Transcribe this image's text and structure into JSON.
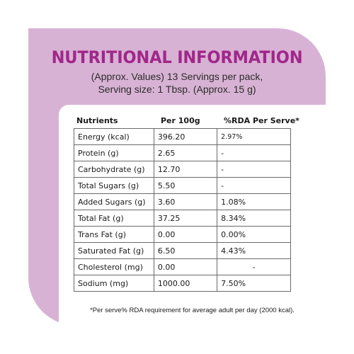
{
  "title": "NUTRITIONAL INFORMATION",
  "subtitle_line1": "(Approx. Values) 13 Servings per pack,",
  "subtitle_line2": "Serving size: 1 Tbsp. (Approx. 15 g)",
  "colors": {
    "accent": "#a0278a",
    "background": "#d8b2d4",
    "panel": "#ffffff"
  },
  "table": {
    "headers": [
      "Nutrients",
      "Per 100g",
      "%RDA Per Serve*"
    ],
    "rows": [
      [
        "Energy (kcal)",
        "396.20",
        "2.97%"
      ],
      [
        "Protein (g)",
        "2.65",
        "-"
      ],
      [
        "Carbohydrate (g)",
        "12.70",
        "-"
      ],
      [
        "Total Sugars (g)",
        "5.50",
        "-"
      ],
      [
        "Added Sugars (g)",
        "3.60",
        "1.08%"
      ],
      [
        "Total Fat (g)",
        "37.25",
        "8.34%"
      ],
      [
        "Trans Fat (g)",
        "0.00",
        "0.00%"
      ],
      [
        "Saturated Fat (g)",
        "6.50",
        "4.43%"
      ],
      [
        "Cholesterol (mg)",
        "0.00",
        "-"
      ],
      [
        "Sodium (mg)",
        "1000.00",
        "7.50%"
      ]
    ]
  },
  "footnote": "*Per serve% RDA requirement for average adult per day (2000 kcal)."
}
